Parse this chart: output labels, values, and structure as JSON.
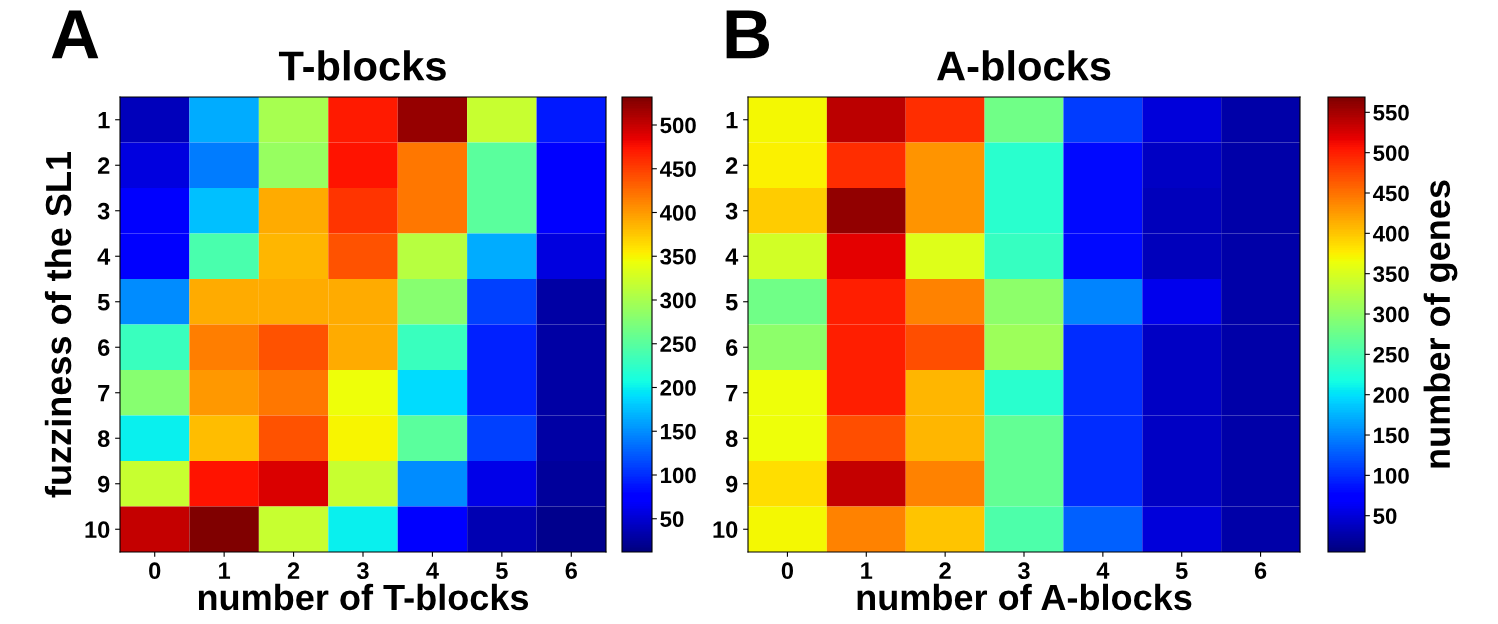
{
  "chart_data": [
    {
      "type": "heatmap",
      "title": "T-blocks",
      "xlabel": "number of T-blocks",
      "ylabel": "fuzziness of the SL1",
      "annotations": [
        "A"
      ],
      "categories": [
        "0",
        "1",
        "2",
        "3",
        "4",
        "5",
        "6"
      ],
      "y_categories": [
        "1",
        "2",
        "3",
        "4",
        "5",
        "6",
        "7",
        "8",
        "9",
        "10"
      ],
      "cells": [
        [
          40,
          165,
          300,
          470,
          520,
          320,
          90
        ],
        [
          55,
          140,
          290,
          475,
          420,
          250,
          75
        ],
        [
          70,
          175,
          390,
          455,
          420,
          250,
          70
        ],
        [
          75,
          240,
          385,
          440,
          310,
          165,
          55
        ],
        [
          150,
          390,
          390,
          390,
          280,
          110,
          30
        ],
        [
          230,
          415,
          440,
          390,
          230,
          95,
          30
        ],
        [
          280,
          400,
          420,
          345,
          190,
          95,
          30
        ],
        [
          200,
          380,
          440,
          350,
          250,
          110,
          30
        ],
        [
          320,
          475,
          490,
          320,
          150,
          60,
          25
        ],
        [
          500,
          530,
          320,
          200,
          70,
          35,
          20
        ]
      ],
      "clim": [
        12,
        532
      ],
      "cticks": [
        50,
        100,
        150,
        200,
        250,
        300,
        350,
        400,
        450,
        500
      ]
    },
    {
      "type": "heatmap",
      "title": "A-blocks",
      "xlabel": "number of A-blocks",
      "clabel": "number of genes",
      "annotations": [
        "B"
      ],
      "categories": [
        "0",
        "1",
        "2",
        "3",
        "4",
        "5",
        "6"
      ],
      "y_categories": [
        "1",
        "2",
        "3",
        "4",
        "5",
        "6",
        "7",
        "8",
        "9",
        "10"
      ],
      "cells": [
        [
          370,
          540,
          490,
          280,
          110,
          50,
          25
        ],
        [
          375,
          490,
          430,
          230,
          80,
          40,
          25
        ],
        [
          395,
          560,
          430,
          230,
          80,
          35,
          25
        ],
        [
          345,
          520,
          355,
          240,
          80,
          35,
          25
        ],
        [
          280,
          500,
          440,
          300,
          150,
          60,
          25
        ],
        [
          300,
          500,
          470,
          310,
          100,
          40,
          25
        ],
        [
          365,
          500,
          410,
          230,
          100,
          40,
          25
        ],
        [
          365,
          470,
          410,
          270,
          100,
          40,
          25
        ],
        [
          385,
          535,
          440,
          270,
          100,
          40,
          25
        ],
        [
          370,
          440,
          400,
          255,
          130,
          50,
          25
        ]
      ],
      "clim": [
        5,
        569
      ],
      "cticks": [
        50,
        100,
        150,
        200,
        250,
        300,
        350,
        400,
        450,
        500,
        550
      ]
    }
  ]
}
